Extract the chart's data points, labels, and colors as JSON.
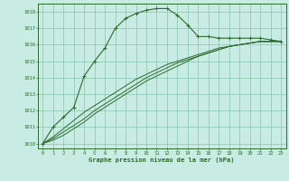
{
  "title": "Graphe pression niveau de la mer (hPa)",
  "xlabel_hours": [
    0,
    1,
    2,
    3,
    4,
    5,
    6,
    7,
    8,
    9,
    10,
    11,
    12,
    13,
    14,
    15,
    16,
    17,
    18,
    19,
    20,
    21,
    22,
    23
  ],
  "yticks": [
    1010,
    1011,
    1012,
    1013,
    1014,
    1015,
    1016,
    1017,
    1018
  ],
  "ylim": [
    1009.7,
    1018.5
  ],
  "xlim": [
    -0.5,
    23.5
  ],
  "bg_color": "#c8ece4",
  "grid_color": "#88c4b0",
  "line_color": "#2d6a2d",
  "line1_x": [
    0,
    1,
    2,
    3,
    4,
    5,
    6,
    7,
    8,
    9,
    10,
    11,
    12,
    13,
    14,
    15,
    16,
    17,
    18,
    19,
    20,
    21,
    22,
    23
  ],
  "line1_y": [
    1010.0,
    1011.0,
    1011.6,
    1012.2,
    1014.1,
    1015.0,
    1015.8,
    1017.0,
    1017.6,
    1017.9,
    1018.1,
    1018.2,
    1018.2,
    1017.8,
    1017.2,
    1016.5,
    1016.5,
    1016.4,
    1016.4,
    1016.4,
    1016.4,
    1016.4,
    1016.3,
    1016.2
  ],
  "line2_x": [
    0,
    1,
    2,
    3,
    4,
    5,
    6,
    7,
    8,
    9,
    10,
    11,
    12,
    13,
    14,
    15,
    16,
    17,
    18,
    19,
    20,
    21,
    22,
    23
  ],
  "line2_y": [
    1010.0,
    1010.2,
    1010.5,
    1010.9,
    1011.3,
    1011.8,
    1012.2,
    1012.6,
    1013.0,
    1013.4,
    1013.8,
    1014.1,
    1014.4,
    1014.7,
    1015.0,
    1015.3,
    1015.5,
    1015.7,
    1015.9,
    1016.0,
    1016.1,
    1016.2,
    1016.2,
    1016.2
  ],
  "line3_x": [
    0,
    1,
    2,
    3,
    4,
    5,
    6,
    7,
    8,
    9,
    10,
    11,
    12,
    13,
    14,
    15,
    16,
    17,
    18,
    19,
    20,
    21,
    22,
    23
  ],
  "line3_y": [
    1010.0,
    1010.3,
    1010.7,
    1011.1,
    1011.5,
    1012.0,
    1012.4,
    1012.8,
    1013.2,
    1013.6,
    1014.0,
    1014.3,
    1014.6,
    1014.9,
    1015.1,
    1015.3,
    1015.5,
    1015.7,
    1015.9,
    1016.0,
    1016.1,
    1016.2,
    1016.2,
    1016.2
  ],
  "line4_x": [
    0,
    1,
    2,
    3,
    4,
    5,
    6,
    7,
    8,
    9,
    10,
    11,
    12,
    13,
    14,
    15,
    16,
    17,
    18,
    19,
    20,
    21,
    22,
    23
  ],
  "line4_y": [
    1010.0,
    1010.4,
    1010.9,
    1011.4,
    1011.9,
    1012.3,
    1012.7,
    1013.1,
    1013.5,
    1013.9,
    1014.2,
    1014.5,
    1014.8,
    1015.0,
    1015.2,
    1015.4,
    1015.6,
    1015.8,
    1015.9,
    1016.0,
    1016.1,
    1016.2,
    1016.2,
    1016.2
  ]
}
